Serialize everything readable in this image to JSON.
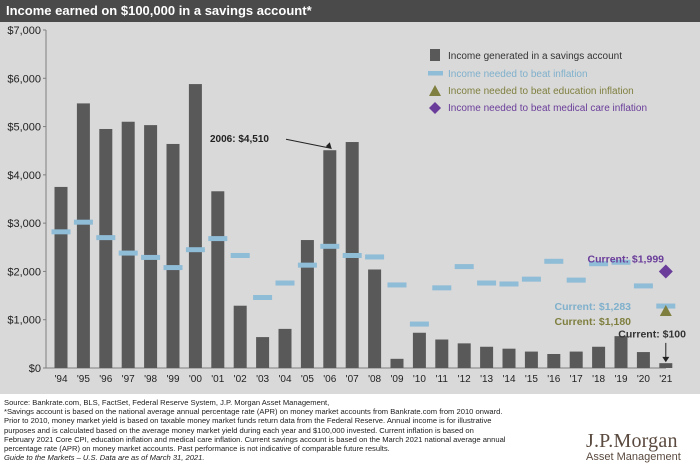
{
  "title": "Income earned on $100,000 in a savings account*",
  "colors": {
    "bar": "#595959",
    "inflation": "#8fbcd6",
    "education": "#7f7f3f",
    "medical": "#6a3d9a",
    "background": "#d9d9d9",
    "title_bar": "#4a4a4a"
  },
  "chart_data": {
    "type": "bar",
    "categories": [
      "'94",
      "'95",
      "'96",
      "'97",
      "'98",
      "'99",
      "'00",
      "'01",
      "'02",
      "'03",
      "'04",
      "'05",
      "'06",
      "'07",
      "'08",
      "'09",
      "'10",
      "'11",
      "'12",
      "'13",
      "'14",
      "'15",
      "'16",
      "'17",
      "'18",
      "'19",
      "'20",
      "'21"
    ],
    "series": [
      {
        "name": "Income generated in a savings account",
        "type": "bar",
        "values": [
          3750,
          5480,
          4950,
          5100,
          5030,
          4640,
          5880,
          3660,
          1290,
          640,
          810,
          2650,
          4510,
          4680,
          2040,
          190,
          730,
          590,
          510,
          440,
          400,
          340,
          290,
          340,
          440,
          660,
          330,
          100
        ]
      },
      {
        "name": "Income needed to beat inflation",
        "type": "dash",
        "values": [
          2820,
          3020,
          2700,
          2380,
          2290,
          2080,
          2450,
          2680,
          2330,
          1460,
          1760,
          2130,
          2520,
          2330,
          2300,
          1720,
          910,
          1660,
          2100,
          1760,
          1740,
          1840,
          2210,
          1820,
          2160,
          2190,
          1700,
          1283
        ]
      }
    ],
    "points": [
      {
        "name": "Income needed to beat education inflation",
        "category": "'21",
        "value": 1180
      },
      {
        "name": "Income needed to beat medical care inflation",
        "category": "'21",
        "value": 1999
      }
    ],
    "y_ticks": [
      "$0",
      "$1,000",
      "$2,000",
      "$3,000",
      "$4,000",
      "$5,000",
      "$6,000",
      "$7,000"
    ],
    "ylim": [
      0,
      7000
    ],
    "legend_position": "top-right",
    "annotations": {
      "a2006": "2006: $4,510",
      "medical": "Current: $1,999",
      "inflation": "Current: $1,283",
      "education": "Current: $1,180",
      "savings": "Current: $100"
    }
  },
  "footnotes": [
    "Source: Bankrate.com, BLS, FactSet, Federal Reserve System, J.P. Morgan Asset Management,",
    "*Savings account is based on the national average annual percentage rate (APR) on money market accounts from Bankrate.com from 2010 onward.",
    "Prior to 2010, money market yield is based on taxable money market funds return data from the Federal Reserve. Annual income is for illustrative",
    "purposes and is calculated based on the average money market yield during each year and $100,000 invested. Current inflation is based on",
    "February 2021 Core CPI, education inflation and medical care inflation. Current savings account is based on the March 2021 national average annual",
    "percentage rate (APR) on money market accounts. Past performance is not indicative of comparable future results.",
    "Guide to the Markets – U.S. Data are as of March 31, 2021."
  ],
  "logo": {
    "name": "J.P.Morgan",
    "sub": "Asset Management"
  }
}
